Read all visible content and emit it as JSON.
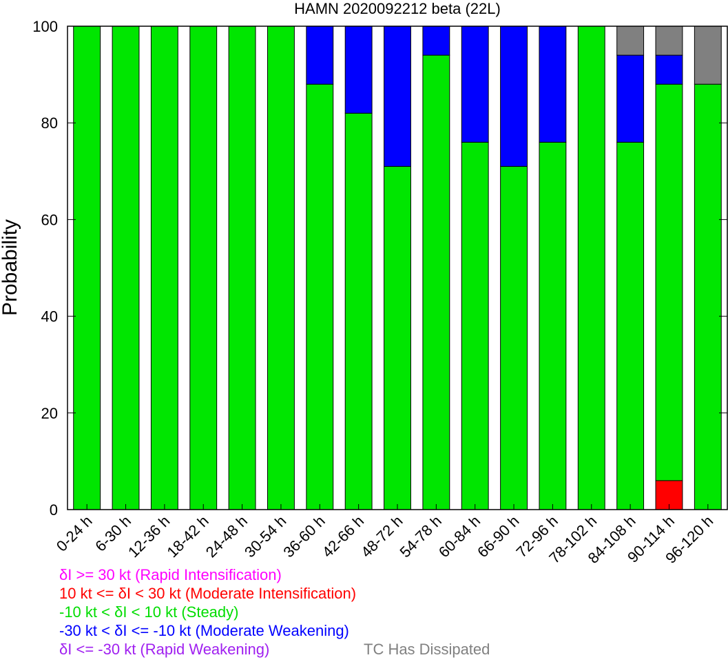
{
  "chart_data": {
    "type": "bar",
    "stacked": true,
    "title": "HAMN 2020092212 beta (22L)",
    "xlabel": "",
    "ylabel": "Probability",
    "ylim": [
      0,
      100
    ],
    "yticks": [
      0,
      20,
      40,
      60,
      80,
      100
    ],
    "grid": false,
    "categories": [
      "0-24 h",
      "6-30 h",
      "12-36 h",
      "18-42 h",
      "24-48 h",
      "30-54 h",
      "36-60 h",
      "42-66 h",
      "48-72 h",
      "54-78 h",
      "60-84 h",
      "66-90 h",
      "72-96 h",
      "78-102 h",
      "84-108 h",
      "90-114 h",
      "96-120 h"
    ],
    "series": [
      {
        "name": "Rapid Weakening",
        "color": "#a020f0",
        "values": [
          0,
          0,
          0,
          0,
          0,
          0,
          0,
          0,
          0,
          0,
          0,
          0,
          0,
          0,
          0,
          0,
          0
        ]
      },
      {
        "name": "Moderate Intensification",
        "color": "#ff0000",
        "values": [
          0,
          0,
          0,
          0,
          0,
          0,
          0,
          0,
          0,
          0,
          0,
          0,
          0,
          0,
          0,
          6,
          0
        ]
      },
      {
        "name": "Steady",
        "color": "#00e600",
        "values": [
          100,
          100,
          100,
          100,
          100,
          100,
          88,
          82,
          71,
          94,
          76,
          71,
          76,
          100,
          76,
          82,
          88
        ]
      },
      {
        "name": "Moderate Weakening",
        "color": "#0000ff",
        "values": [
          0,
          0,
          0,
          0,
          0,
          0,
          12,
          18,
          29,
          6,
          24,
          29,
          24,
          0,
          18,
          6,
          0
        ]
      },
      {
        "name": "TC Has Dissipated",
        "color": "#808080",
        "values": [
          0,
          0,
          0,
          0,
          0,
          0,
          0,
          0,
          0,
          0,
          0,
          0,
          0,
          0,
          6,
          6,
          12
        ]
      }
    ],
    "legend": {
      "position": "bottom",
      "entries": [
        {
          "text": "δI >= 30 kt (Rapid Intensification)",
          "color": "#ff00ff"
        },
        {
          "text": "10 kt <= δI < 30 kt (Moderate Intensification)",
          "color": "#ff0000"
        },
        {
          "text": "-10 kt < δI < 10 kt (Steady)",
          "color": "#00dd00"
        },
        {
          "text": "-30 kt < δI <= -10 kt (Moderate Weakening)",
          "color": "#0000ff"
        },
        {
          "text": "δI <= -30 kt (Rapid Weakening)",
          "color": "#a020f0"
        }
      ],
      "dissipated": {
        "text": "TC Has Dissipated",
        "color": "#808080"
      }
    }
  }
}
